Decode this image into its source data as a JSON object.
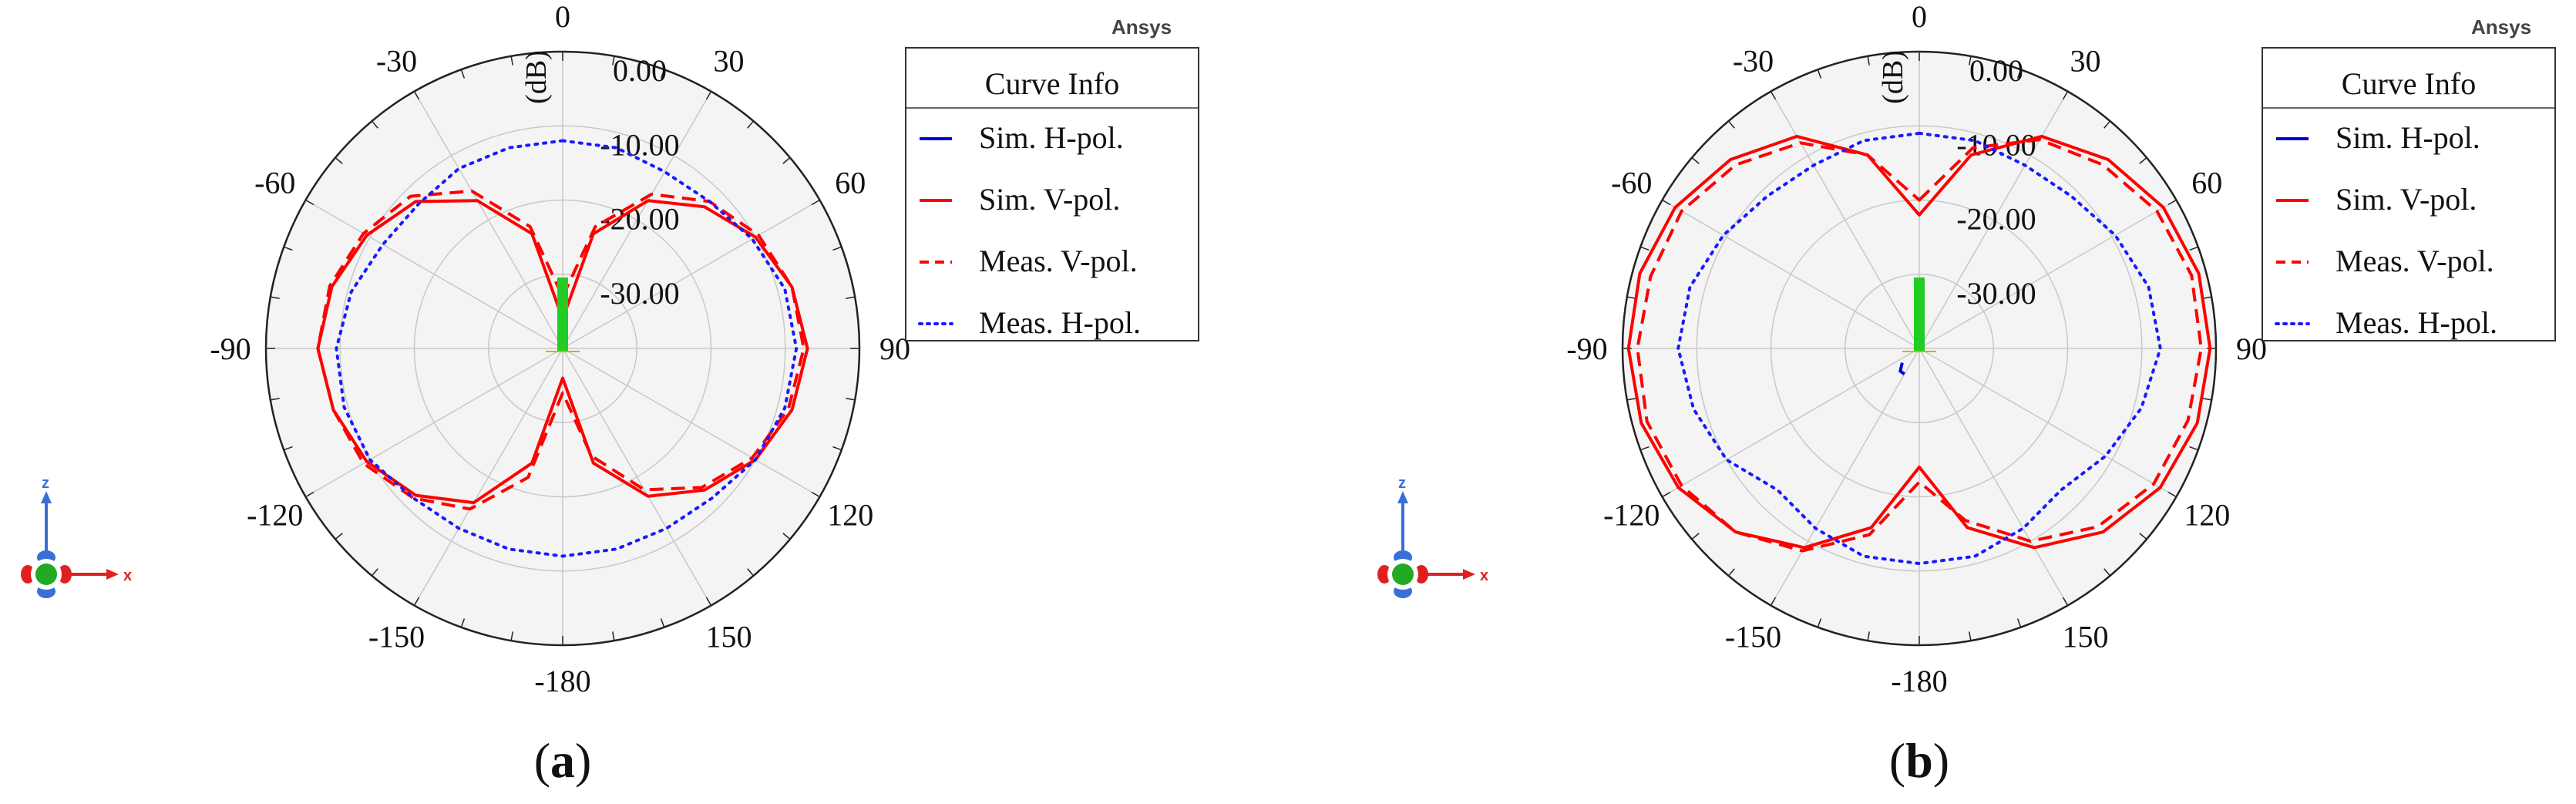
{
  "brand": "Ansys",
  "legend_title": "Curve Info",
  "unit_label": "(dB)",
  "triad_labels": {
    "z": "z",
    "x": "x"
  },
  "colors": {
    "sim_h": "#0000dd",
    "sim_v": "#ff0000",
    "meas_v": "#ff0000",
    "meas_h": "#1a1aff",
    "grid": "#c8c8c8",
    "plot_bg": "#f4f4f4",
    "feed": "#22cc22"
  },
  "chart_data": [
    {
      "type": "polar-line",
      "caption": {
        "open": "(",
        "letter": "a",
        "close": ")"
      },
      "angle_ticks": [
        "0",
        "30",
        "60",
        "90",
        "120",
        "150",
        "-180",
        "-150",
        "-120",
        "-90",
        "-60",
        "-30"
      ],
      "angle_values": [
        0,
        30,
        60,
        90,
        120,
        150,
        180,
        -150,
        -120,
        -90,
        -60,
        -30
      ],
      "radial_labels": [
        "0.00",
        "-10.00",
        "-20.00",
        "-30.00"
      ],
      "radial_label_values": [
        0,
        -10,
        -20,
        -30
      ],
      "rlim": [
        -40,
        0
      ],
      "legend": [
        "Sim. H-pol.",
        "Sim. V-pol.",
        "Meas. V-pol.",
        "Meas. H-pol."
      ],
      "series": [
        {
          "name": "Sim. H-pol.",
          "style": "solid",
          "color": "#0000dd",
          "theta": [
            0,
            180
          ],
          "r": [
            -40,
            -40
          ]
        },
        {
          "name": "Sim. V-pol.",
          "style": "solid",
          "color": "#ff0000",
          "theta": [
            0,
            15,
            30,
            45,
            60,
            75,
            90,
            105,
            120,
            135,
            150,
            165,
            180,
            -165,
            -150,
            -135,
            -120,
            -105,
            -90,
            -75,
            -60,
            -45,
            -30,
            -15
          ],
          "r": [
            -36,
            -24,
            -17,
            -13,
            -10,
            -8,
            -7,
            -8,
            -10,
            -13,
            -17,
            -24,
            -36,
            -24,
            -16,
            -12,
            -9.5,
            -8,
            -7,
            -7.8,
            -9.5,
            -12,
            -17,
            -24
          ]
        },
        {
          "name": "Meas. V-pol.",
          "style": "dash",
          "color": "#ff0000",
          "theta": [
            0,
            15,
            30,
            45,
            60,
            75,
            90,
            105,
            120,
            135,
            150,
            165,
            180,
            -165,
            -150,
            -135,
            -120,
            -105,
            -90,
            -75,
            -60,
            -45,
            -30,
            -15
          ],
          "r": [
            -33,
            -23,
            -16,
            -12,
            -9.5,
            -8,
            -7.5,
            -8.5,
            -10.5,
            -13.5,
            -18,
            -25,
            -34,
            -22,
            -15,
            -11.5,
            -9,
            -8,
            -7,
            -7.5,
            -9,
            -11,
            -15.5,
            -23
          ]
        },
        {
          "name": "Meas. H-pol.",
          "style": "dot",
          "color": "#1a1aff",
          "theta": [
            0,
            15,
            30,
            45,
            60,
            75,
            90,
            105,
            120,
            135,
            150,
            165,
            180,
            -165,
            -150,
            -135,
            -120,
            -105,
            -90,
            -75,
            -60,
            -45,
            -30,
            -15
          ],
          "r": [
            -12,
            -12,
            -12.5,
            -12,
            -10.5,
            -9,
            -8.5,
            -9,
            -10,
            -11.5,
            -12,
            -12,
            -12,
            -12,
            -12,
            -11.5,
            -10,
            -9.5,
            -9.5,
            -10.5,
            -12,
            -12.5,
            -12,
            -12
          ]
        }
      ]
    },
    {
      "type": "polar-line",
      "caption": {
        "open": "(",
        "letter": "b",
        "close": ")"
      },
      "angle_ticks": [
        "0",
        "30",
        "60",
        "90",
        "120",
        "150",
        "-180",
        "-150",
        "-120",
        "-90",
        "-60",
        "-30"
      ],
      "angle_values": [
        0,
        30,
        60,
        90,
        120,
        150,
        180,
        -150,
        -120,
        -90,
        -60,
        -30
      ],
      "radial_labels": [
        "0.00",
        "-10.00",
        "-20.00",
        "-30.00"
      ],
      "radial_label_values": [
        0,
        -10,
        -20,
        -30
      ],
      "rlim": [
        -40,
        0
      ],
      "legend": [
        "Sim. H-pol.",
        "Sim. V-pol.",
        "Meas. V-pol.",
        "Meas. H-pol."
      ],
      "series": [
        {
          "name": "Sim. H-pol.",
          "style": "solid",
          "color": "#0000dd",
          "theta": [
            -150,
            -140,
            -130
          ],
          "r": [
            -36,
            -36,
            -37
          ]
        },
        {
          "name": "Sim. V-pol.",
          "style": "solid",
          "color": "#ff0000",
          "theta": [
            0,
            15,
            30,
            45,
            60,
            75,
            90,
            105,
            120,
            135,
            150,
            165,
            180,
            -165,
            -150,
            -135,
            -120,
            -105,
            -90,
            -75,
            -60,
            -45,
            -30,
            -15
          ],
          "r": [
            -22,
            -13,
            -7,
            -4,
            -2,
            -1,
            -0.8,
            -1.2,
            -2.5,
            -5,
            -9,
            -15,
            -24,
            -15,
            -9,
            -5,
            -2.5,
            -1.2,
            -0.8,
            -1,
            -2,
            -4,
            -7,
            -13
          ]
        },
        {
          "name": "Meas. V-pol.",
          "style": "dash",
          "color": "#ff0000",
          "theta": [
            0,
            15,
            30,
            45,
            60,
            75,
            90,
            105,
            120,
            135,
            150,
            165,
            180,
            -165,
            -150,
            -135,
            -120,
            -105,
            -90,
            -75,
            -60,
            -45,
            -30,
            -15
          ],
          "r": [
            -20,
            -12,
            -7.5,
            -5,
            -3,
            -2,
            -2,
            -2.5,
            -3.5,
            -6,
            -10,
            -16,
            -22,
            -14,
            -8.5,
            -5,
            -3,
            -2,
            -2,
            -2.5,
            -3,
            -5,
            -8,
            -13
          ]
        },
        {
          "name": "Meas. H-pol.",
          "style": "dot",
          "color": "#1a1aff",
          "theta": [
            0,
            15,
            30,
            45,
            60,
            75,
            90,
            105,
            120,
            135,
            150,
            165,
            180,
            -165,
            -150,
            -135,
            -120,
            -105,
            -90,
            -75,
            -60,
            -45,
            -30,
            -15
          ],
          "r": [
            -11,
            -11,
            -11.5,
            -11,
            -9.5,
            -8,
            -7.5,
            -9,
            -11,
            -13,
            -12,
            -11,
            -11,
            -11,
            -12,
            -13,
            -10,
            -8.5,
            -7.5,
            -8,
            -9.5,
            -11,
            -11.5,
            -11
          ]
        }
      ]
    }
  ]
}
